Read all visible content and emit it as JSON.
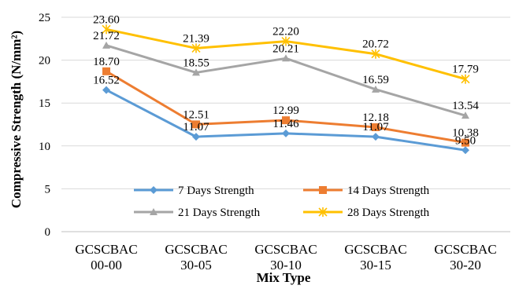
{
  "chart_data": {
    "type": "line",
    "categories": [
      [
        "GCSCBAC",
        "00-00"
      ],
      [
        "GCSCBAC",
        "30-05"
      ],
      [
        "GCSCBAC",
        "30-10"
      ],
      [
        "GCSCBAC",
        "30-15"
      ],
      [
        "GCSCBAC",
        "30-20"
      ]
    ],
    "series": [
      {
        "name": "7 Days Strength",
        "color": "#5B9BD5",
        "marker": "diamond",
        "values": [
          16.52,
          11.07,
          11.46,
          11.07,
          9.5
        ],
        "labels": [
          "16.52",
          "11.07",
          "11.46",
          "11.07",
          "9.50"
        ]
      },
      {
        "name": "14 Days Strength",
        "color": "#ED7D31",
        "marker": "square",
        "values": [
          18.7,
          12.51,
          12.99,
          12.18,
          10.38
        ],
        "labels": [
          "18.70",
          "12.51",
          "12.99",
          "12.18",
          "10.38"
        ]
      },
      {
        "name": "21 Days Strength",
        "color": "#A5A5A5",
        "marker": "triangle",
        "values": [
          21.72,
          18.55,
          20.21,
          16.59,
          13.54
        ],
        "labels": [
          "21.72",
          "18.55",
          "20.21",
          "16.59",
          "13.54"
        ]
      },
      {
        "name": "28 Days Strength",
        "color": "#FFC000",
        "marker": "star",
        "values": [
          23.6,
          21.39,
          22.2,
          20.72,
          17.79
        ],
        "labels": [
          "23.60",
          "21.39",
          "22.20",
          "20.72",
          "17.79"
        ]
      }
    ],
    "ylim": [
      0,
      25
    ],
    "yticks": [
      "0",
      "5",
      "10",
      "15",
      "20",
      "25"
    ],
    "xlabel": "Mix Type",
    "ylabel": "Compressive Strength (N/mm²)",
    "grid": true,
    "legend": "inside-bottom"
  }
}
